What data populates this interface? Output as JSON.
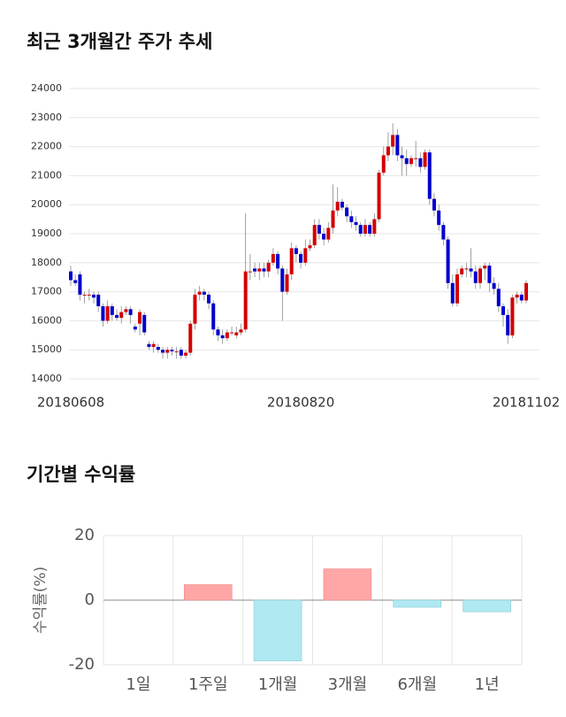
{
  "chart_data": [
    {
      "type": "candlestick",
      "title": "최근 3개월간 주가 추세",
      "categories": [
        "20180608",
        null,
        null,
        null,
        null,
        null,
        null,
        null,
        null,
        null,
        null,
        null,
        null,
        null,
        null,
        null,
        null,
        null,
        null,
        null,
        null,
        null,
        null,
        null,
        null,
        null,
        null,
        null,
        null,
        null,
        null,
        null,
        null,
        null,
        null,
        null,
        null,
        null,
        null,
        null,
        null,
        null,
        null,
        null,
        null,
        null,
        null,
        null,
        null,
        null,
        "20180820",
        null,
        null,
        null,
        null,
        null,
        null,
        null,
        null,
        null,
        null,
        null,
        null,
        null,
        null,
        null,
        null,
        null,
        null,
        null,
        null,
        null,
        null,
        null,
        null,
        null,
        null,
        null,
        null,
        null,
        null,
        null,
        null,
        null,
        null,
        null,
        null,
        null,
        null,
        null,
        null,
        null,
        null,
        null,
        null,
        null,
        null,
        null,
        null,
        "20181102"
      ],
      "open": [
        17700,
        17400,
        17600,
        16900,
        16900,
        16900,
        16900,
        16500,
        16000,
        16500,
        16200,
        16100,
        16300,
        16400,
        15800,
        15900,
        16200,
        15200,
        15100,
        15100,
        15000,
        14900,
        15000,
        14950,
        15000,
        14800,
        14900,
        15900,
        16900,
        17000,
        16900,
        16600,
        15700,
        15500,
        15400,
        15600,
        15500,
        15600,
        15700,
        17700,
        17800,
        17700,
        17800,
        17700,
        18000,
        18300,
        17800,
        17000,
        17600,
        18500,
        18300,
        18000,
        18500,
        18600,
        19300,
        19000,
        18800,
        19200,
        19800,
        20100,
        19900,
        19600,
        19400,
        19300,
        19000,
        19300,
        19000,
        19500,
        21100,
        21700,
        22000,
        22400,
        21700,
        21600,
        21400,
        21600,
        21600,
        21300,
        21800,
        20200,
        19800,
        19300,
        18800,
        17300,
        16600,
        17600,
        17800,
        17800,
        17700,
        17300,
        17800,
        17900,
        17300,
        17100,
        16500,
        16200,
        15500,
        16800,
        16900,
        16700
      ],
      "high": [
        17900,
        17600,
        17700,
        17000,
        17100,
        17000,
        17000,
        16600,
        16700,
        16600,
        16400,
        16500,
        16500,
        16500,
        15900,
        16400,
        16300,
        15300,
        15300,
        15200,
        15100,
        15100,
        15100,
        15100,
        15100,
        15000,
        16000,
        17100,
        17200,
        17100,
        17000,
        16700,
        15800,
        15700,
        15700,
        15800,
        15800,
        15900,
        19700,
        18300,
        18000,
        18000,
        18000,
        18100,
        18500,
        18400,
        17900,
        17800,
        18700,
        18600,
        18400,
        18800,
        18800,
        19500,
        19500,
        19200,
        19400,
        20700,
        20600,
        20200,
        20000,
        19800,
        19600,
        19400,
        19500,
        19400,
        19700,
        21200,
        22000,
        22500,
        22800,
        22600,
        22000,
        21900,
        21700,
        22200,
        21800,
        21900,
        21900,
        20400,
        20000,
        19400,
        18900,
        17600,
        17800,
        17900,
        18000,
        18500,
        17900,
        17900,
        18000,
        18000,
        17500,
        17300,
        16600,
        16400,
        16900,
        17000,
        17000,
        17400
      ],
      "low": [
        17200,
        17200,
        16700,
        16600,
        16700,
        16600,
        16300,
        15800,
        15900,
        16000,
        16000,
        15900,
        16200,
        15900,
        15600,
        15500,
        15500,
        15000,
        14900,
        14900,
        14700,
        14700,
        14800,
        14700,
        14700,
        14700,
        14800,
        15700,
        16700,
        16700,
        16400,
        15500,
        15300,
        15200,
        15300,
        15500,
        15400,
        15500,
        15600,
        17400,
        17500,
        17400,
        17500,
        17500,
        17900,
        17600,
        16000,
        16900,
        17400,
        18000,
        17800,
        17900,
        18400,
        18500,
        18800,
        18600,
        18700,
        19000,
        19600,
        19800,
        19400,
        19200,
        19100,
        18900,
        18900,
        18900,
        18900,
        19400,
        21000,
        21500,
        21700,
        21500,
        21000,
        21000,
        21300,
        21300,
        21100,
        21200,
        20000,
        19600,
        19100,
        18600,
        17100,
        16500,
        16500,
        17500,
        17500,
        17500,
        17100,
        17100,
        17400,
        17000,
        16900,
        16300,
        15800,
        15200,
        15400,
        16600,
        16600,
        16600
      ],
      "close": [
        17400,
        17300,
        16900,
        16900,
        16900,
        16800,
        16500,
        16000,
        16500,
        16200,
        16100,
        16300,
        16400,
        16200,
        15700,
        16300,
        15600,
        15100,
        15200,
        15000,
        14900,
        15000,
        14950,
        14950,
        14800,
        14900,
        15900,
        16900,
        17000,
        16900,
        16600,
        15700,
        15500,
        15400,
        15600,
        15600,
        15600,
        15700,
        17700,
        17700,
        17700,
        17800,
        17700,
        18000,
        18300,
        17800,
        17000,
        17600,
        18500,
        18300,
        18000,
        18500,
        18600,
        19300,
        19000,
        18800,
        19200,
        19800,
        20100,
        19900,
        19600,
        19400,
        19300,
        19000,
        19300,
        19000,
        19500,
        21100,
        21700,
        22000,
        22400,
        21700,
        21600,
        21400,
        21600,
        21600,
        21300,
        21800,
        20200,
        19800,
        19300,
        18800,
        17300,
        16600,
        17600,
        17800,
        17800,
        17700,
        17300,
        17800,
        17900,
        17300,
        17100,
        16500,
        16200,
        15500,
        16800,
        16900,
        16700,
        17300
      ],
      "up_color": "#d40000",
      "down_color": "#0000cc",
      "ylim": [
        14000,
        24000
      ],
      "yticks": [
        14000,
        15000,
        16000,
        17000,
        18000,
        19000,
        20000,
        21000,
        22000,
        23000,
        24000
      ],
      "grid": true
    },
    {
      "type": "bar",
      "title": "기간별 수익률",
      "y_label": "수익률(%)",
      "categories": [
        "1일",
        "1주일",
        "1개월",
        "3개월",
        "6개월",
        "1년"
      ],
      "values": [
        0,
        4.8,
        -18.8,
        9.7,
        -2.2,
        -3.6
      ],
      "positive_color": "#ffa6a6",
      "negative_color": "#b0e9f2",
      "ylim": [
        -20,
        20
      ],
      "yticks": [
        -20,
        0,
        20
      ],
      "grid": true
    }
  ]
}
